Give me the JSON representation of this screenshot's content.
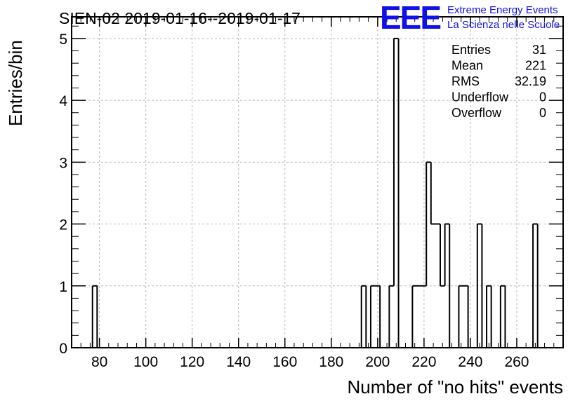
{
  "chart_data": {
    "type": "bar",
    "title": "SIEN-02 2019-01-16--2019-01-17",
    "xlabel": "Number of \"no hits\" events",
    "ylabel": "Entries/bin",
    "xlim": [
      68,
      280
    ],
    "ylim": [
      0,
      5.35
    ],
    "x_ticks": [
      80,
      100,
      120,
      140,
      160,
      180,
      200,
      220,
      240,
      260
    ],
    "y_ticks": [
      0,
      1,
      2,
      3,
      4,
      5
    ],
    "grid": true,
    "bin_width": 2,
    "bins": [
      {
        "x": 77,
        "value": 1
      },
      {
        "x": 193,
        "value": 1
      },
      {
        "x": 197,
        "value": 1
      },
      {
        "x": 199,
        "value": 1
      },
      {
        "x": 205,
        "value": 1
      },
      {
        "x": 207,
        "value": 5
      },
      {
        "x": 215,
        "value": 1
      },
      {
        "x": 217,
        "value": 1
      },
      {
        "x": 219,
        "value": 1
      },
      {
        "x": 221,
        "value": 3
      },
      {
        "x": 223,
        "value": 2
      },
      {
        "x": 225,
        "value": 2
      },
      {
        "x": 227,
        "value": 1
      },
      {
        "x": 229,
        "value": 2
      },
      {
        "x": 235,
        "value": 1
      },
      {
        "x": 237,
        "value": 1
      },
      {
        "x": 243,
        "value": 2
      },
      {
        "x": 247,
        "value": 1
      },
      {
        "x": 253,
        "value": 1
      },
      {
        "x": 267,
        "value": 2
      }
    ],
    "stats": [
      {
        "label": "Entries",
        "value": "31"
      },
      {
        "label": "Mean",
        "value": "221"
      },
      {
        "label": "RMS",
        "value": "32.19"
      },
      {
        "label": "Underflow",
        "value": "0"
      },
      {
        "label": "Overflow",
        "value": "0"
      }
    ],
    "stats_placement": "top-right"
  },
  "logo": {
    "mark": "EEE",
    "line1": "Extreme Energy Events",
    "line2": "La Scienza nelle Scuole",
    "color": "#1010e8"
  }
}
